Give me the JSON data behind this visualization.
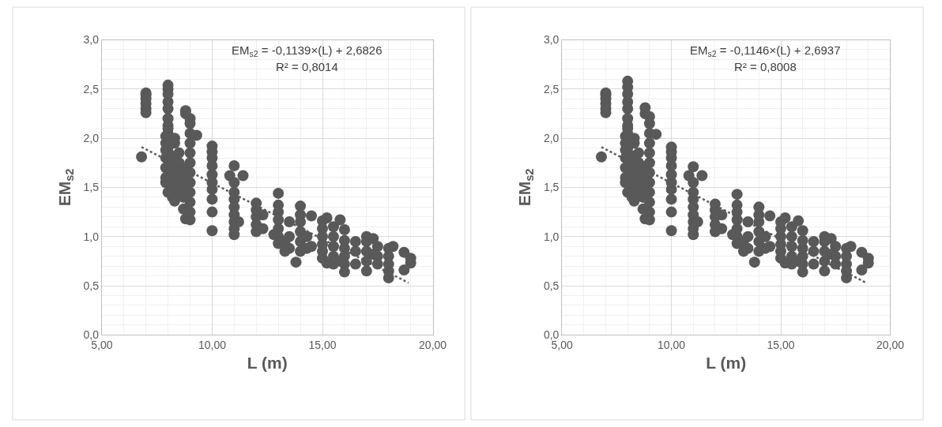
{
  "chart_data": [
    {
      "type": "scatter",
      "xlabel": "L (m)",
      "ylabel": "EM$_{s2}$",
      "xlim": [
        5,
        20
      ],
      "xticks": [
        {
          "value": 5,
          "label": "5,00"
        },
        {
          "value": 10,
          "label": "10,00"
        },
        {
          "value": 15,
          "label": "15,00"
        },
        {
          "value": 20,
          "label": "20,00"
        }
      ],
      "ylim": [
        0,
        3
      ],
      "yticks": [
        {
          "value": 0,
          "label": "0,0"
        },
        {
          "value": 0.5,
          "label": "0,5"
        },
        {
          "value": 1,
          "label": "1,0"
        },
        {
          "value": 1.5,
          "label": "1,5"
        },
        {
          "value": 2,
          "label": "2,0"
        },
        {
          "value": 2.5,
          "label": "2,5"
        },
        {
          "value": 3,
          "label": "3,0"
        }
      ],
      "grid": true,
      "marker": "circle",
      "annotations": [
        "EM$_{s2}$ = -0,1139×(L) + 2,6826",
        "R² = 0,8014"
      ],
      "series": [
        {
          "type": "scatter",
          "color": "#595959",
          "x": [
            6.8,
            7.0,
            7.0,
            7.0,
            7.0,
            7.0,
            7.0,
            7.9,
            7.9,
            7.9,
            7.9,
            7.9,
            7.9,
            7.9,
            8.0,
            8.0,
            8.0,
            8.0,
            8.0,
            8.0,
            8.0,
            8.0,
            8.0,
            8.0,
            8.0,
            8.2,
            8.2,
            8.2,
            8.2,
            8.2,
            8.2,
            8.3,
            8.3,
            8.3,
            8.5,
            8.5,
            8.5,
            8.5,
            8.5,
            8.7,
            8.7,
            8.7,
            8.7,
            8.7,
            8.8,
            8.8,
            8.8,
            9.0,
            9.0,
            9.0,
            9.0,
            9.0,
            9.0,
            9.0,
            9.0,
            9.0,
            9.0,
            9.0,
            9.0,
            9.3,
            10.0,
            10.0,
            10.0,
            10.0,
            10.0,
            10.0,
            10.0,
            10.0,
            10.0,
            10.0,
            10.8,
            11.0,
            11.0,
            11.0,
            11.0,
            11.0,
            11.0,
            11.0,
            11.0,
            11.0,
            11.2,
            11.4,
            12.0,
            12.0,
            12.0,
            12.0,
            12.0,
            12.3,
            12.3,
            12.8,
            13.0,
            13.0,
            13.0,
            13.0,
            13.0,
            13.0,
            13.0,
            13.3,
            13.3,
            13.5,
            13.5,
            13.5,
            13.8,
            14.0,
            14.0,
            14.0,
            14.0,
            14.0,
            14.0,
            14.3,
            14.3,
            14.5,
            14.5,
            15.0,
            15.0,
            15.0,
            15.0,
            15.0,
            15.0,
            15.2,
            15.2,
            15.5,
            15.5,
            15.5,
            15.5,
            15.5,
            15.8,
            15.8,
            16.0,
            16.0,
            16.0,
            16.0,
            16.0,
            16.0,
            16.5,
            16.5,
            16.5,
            17.0,
            17.0,
            17.0,
            17.0,
            17.0,
            17.3,
            17.3,
            17.5,
            17.5,
            17.5,
            18.0,
            18.0,
            18.0,
            18.0,
            18.0,
            18.2,
            18.7,
            18.7,
            19.0,
            19.0
          ],
          "values": [
            1.81,
            2.26,
            2.3,
            2.35,
            2.4,
            2.44,
            2.46,
            1.55,
            1.6,
            1.7,
            1.8,
            1.88,
            1.95,
            2.02,
            2.13,
            2.2,
            2.3,
            2.37,
            2.45,
            2.5,
            2.54,
            1.45,
            1.9,
            2.05,
            2.1,
            1.4,
            1.48,
            1.55,
            1.62,
            1.72,
            1.82,
            1.36,
            1.95,
            2.0,
            1.45,
            1.55,
            1.65,
            1.75,
            1.85,
            1.28,
            1.4,
            1.5,
            1.6,
            1.7,
            2.28,
            2.25,
            1.18,
            1.17,
            1.25,
            1.35,
            1.45,
            1.55,
            1.65,
            1.75,
            1.85,
            1.95,
            2.05,
            2.15,
            2.2,
            2.03,
            1.06,
            1.25,
            1.38,
            1.48,
            1.55,
            1.63,
            1.72,
            1.8,
            1.86,
            1.92,
            1.62,
            1.02,
            1.08,
            1.15,
            1.22,
            1.3,
            1.38,
            1.45,
            1.55,
            1.72,
            1.15,
            1.62,
            1.05,
            1.12,
            1.2,
            1.27,
            1.34,
            1.08,
            1.22,
            1.02,
            0.93,
            1.0,
            1.08,
            1.17,
            1.25,
            1.32,
            1.44,
            0.85,
            0.95,
            0.88,
            1.0,
            1.15,
            0.74,
            0.85,
            0.95,
            1.05,
            1.15,
            1.22,
            1.31,
            0.88,
            1.0,
            0.9,
            1.21,
            0.78,
            0.85,
            0.92,
            1.0,
            1.08,
            1.16,
            0.73,
            1.19,
            0.72,
            0.8,
            0.9,
            1.0,
            1.1,
            0.75,
            1.17,
            0.64,
            0.72,
            0.8,
            0.88,
            0.96,
            1.07,
            0.72,
            0.85,
            0.95,
            0.65,
            0.75,
            0.85,
            0.95,
            1.0,
            0.82,
            0.98,
            0.72,
            0.8,
            0.9,
            0.58,
            0.65,
            0.72,
            0.8,
            0.88,
            0.9,
            0.66,
            0.84,
            0.73,
            0.78
          ]
        },
        {
          "type": "line",
          "color": "#595959",
          "line_style": "dotted",
          "marker": "none",
          "x": [
            6.8,
            18.9
          ],
          "values": [
            1.91,
            0.53
          ]
        }
      ]
    },
    {
      "type": "scatter",
      "xlabel": "L (m)",
      "ylabel": "EM$_{s2}$",
      "xlim": [
        5,
        20
      ],
      "xticks": [
        {
          "value": 5,
          "label": "5,00"
        },
        {
          "value": 10,
          "label": "10,00"
        },
        {
          "value": 15,
          "label": "15,00"
        },
        {
          "value": 20,
          "label": "20,00"
        }
      ],
      "ylim": [
        0,
        3
      ],
      "yticks": [
        {
          "value": 0,
          "label": "0,0"
        },
        {
          "value": 0.5,
          "label": "0,5"
        },
        {
          "value": 1,
          "label": "1,0"
        },
        {
          "value": 1.5,
          "label": "1,5"
        },
        {
          "value": 2,
          "label": "2,0"
        },
        {
          "value": 2.5,
          "label": "2,5"
        },
        {
          "value": 3,
          "label": "3,0"
        }
      ],
      "grid": true,
      "marker": "circle",
      "annotations": [
        "EM$_{s2}$ = -0,1146×(L) + 2,6937",
        "R² = 0,8008"
      ],
      "series": [
        {
          "type": "scatter",
          "color": "#595959",
          "x": [
            6.8,
            7.0,
            7.0,
            7.0,
            7.0,
            7.0,
            7.0,
            7.9,
            7.9,
            7.9,
            7.9,
            7.9,
            7.9,
            7.9,
            8.0,
            8.0,
            8.0,
            8.0,
            8.0,
            8.0,
            8.0,
            8.0,
            8.0,
            8.0,
            8.0,
            8.2,
            8.2,
            8.2,
            8.2,
            8.2,
            8.2,
            8.3,
            8.3,
            8.3,
            8.5,
            8.5,
            8.5,
            8.5,
            8.5,
            8.7,
            8.7,
            8.7,
            8.7,
            8.7,
            8.8,
            8.8,
            8.8,
            9.0,
            9.0,
            9.0,
            9.0,
            9.0,
            9.0,
            9.0,
            9.0,
            9.0,
            9.0,
            9.0,
            9.0,
            9.3,
            10.0,
            10.0,
            10.0,
            10.0,
            10.0,
            10.0,
            10.0,
            10.0,
            10.0,
            10.0,
            10.8,
            11.0,
            11.0,
            11.0,
            11.0,
            11.0,
            11.0,
            11.0,
            11.0,
            11.0,
            11.2,
            11.4,
            12.0,
            12.0,
            12.0,
            12.0,
            12.0,
            12.3,
            12.3,
            12.8,
            13.0,
            13.0,
            13.0,
            13.0,
            13.0,
            13.0,
            13.0,
            13.3,
            13.3,
            13.5,
            13.5,
            13.5,
            13.8,
            14.0,
            14.0,
            14.0,
            14.0,
            14.0,
            14.0,
            14.3,
            14.3,
            14.5,
            14.5,
            15.0,
            15.0,
            15.0,
            15.0,
            15.0,
            15.0,
            15.2,
            15.2,
            15.5,
            15.5,
            15.5,
            15.5,
            15.5,
            15.8,
            15.8,
            16.0,
            16.0,
            16.0,
            16.0,
            16.0,
            16.0,
            16.5,
            16.5,
            16.5,
            17.0,
            17.0,
            17.0,
            17.0,
            17.0,
            17.3,
            17.3,
            17.5,
            17.5,
            17.5,
            18.0,
            18.0,
            18.0,
            18.0,
            18.0,
            18.2,
            18.7,
            18.7,
            19.0,
            19.0
          ],
          "values": [
            1.81,
            2.26,
            2.3,
            2.35,
            2.4,
            2.44,
            2.46,
            1.55,
            1.6,
            1.7,
            1.8,
            1.88,
            1.95,
            2.02,
            2.13,
            2.2,
            2.3,
            2.37,
            2.45,
            2.52,
            2.58,
            1.45,
            1.9,
            2.05,
            2.1,
            1.4,
            1.48,
            1.55,
            1.62,
            1.72,
            1.82,
            1.36,
            1.95,
            2.0,
            1.45,
            1.55,
            1.65,
            1.75,
            1.85,
            1.28,
            1.4,
            1.5,
            1.6,
            1.7,
            2.31,
            2.25,
            1.18,
            1.17,
            1.25,
            1.35,
            1.45,
            1.55,
            1.65,
            1.75,
            1.85,
            1.95,
            2.05,
            2.15,
            2.22,
            2.04,
            1.06,
            1.25,
            1.38,
            1.48,
            1.55,
            1.63,
            1.72,
            1.8,
            1.86,
            1.91,
            1.62,
            1.02,
            1.08,
            1.15,
            1.22,
            1.3,
            1.38,
            1.45,
            1.55,
            1.71,
            1.15,
            1.62,
            1.05,
            1.12,
            1.2,
            1.27,
            1.33,
            1.08,
            1.22,
            1.02,
            0.93,
            1.0,
            1.08,
            1.17,
            1.25,
            1.32,
            1.43,
            0.85,
            0.95,
            0.88,
            1.0,
            1.15,
            0.74,
            0.85,
            0.95,
            1.05,
            1.15,
            1.22,
            1.3,
            0.88,
            1.0,
            0.9,
            1.21,
            0.78,
            0.85,
            0.92,
            1.0,
            1.08,
            1.15,
            0.73,
            1.19,
            0.72,
            0.8,
            0.9,
            1.0,
            1.1,
            0.75,
            1.16,
            0.64,
            0.72,
            0.8,
            0.88,
            0.96,
            1.06,
            0.72,
            0.85,
            0.95,
            0.65,
            0.75,
            0.85,
            0.95,
            1.0,
            0.82,
            0.98,
            0.72,
            0.8,
            0.9,
            0.58,
            0.65,
            0.72,
            0.8,
            0.88,
            0.9,
            0.66,
            0.84,
            0.73,
            0.78
          ]
        },
        {
          "type": "line",
          "color": "#595959",
          "line_style": "dotted",
          "marker": "none",
          "x": [
            6.8,
            18.9
          ],
          "values": [
            1.91,
            0.53
          ]
        }
      ]
    }
  ]
}
